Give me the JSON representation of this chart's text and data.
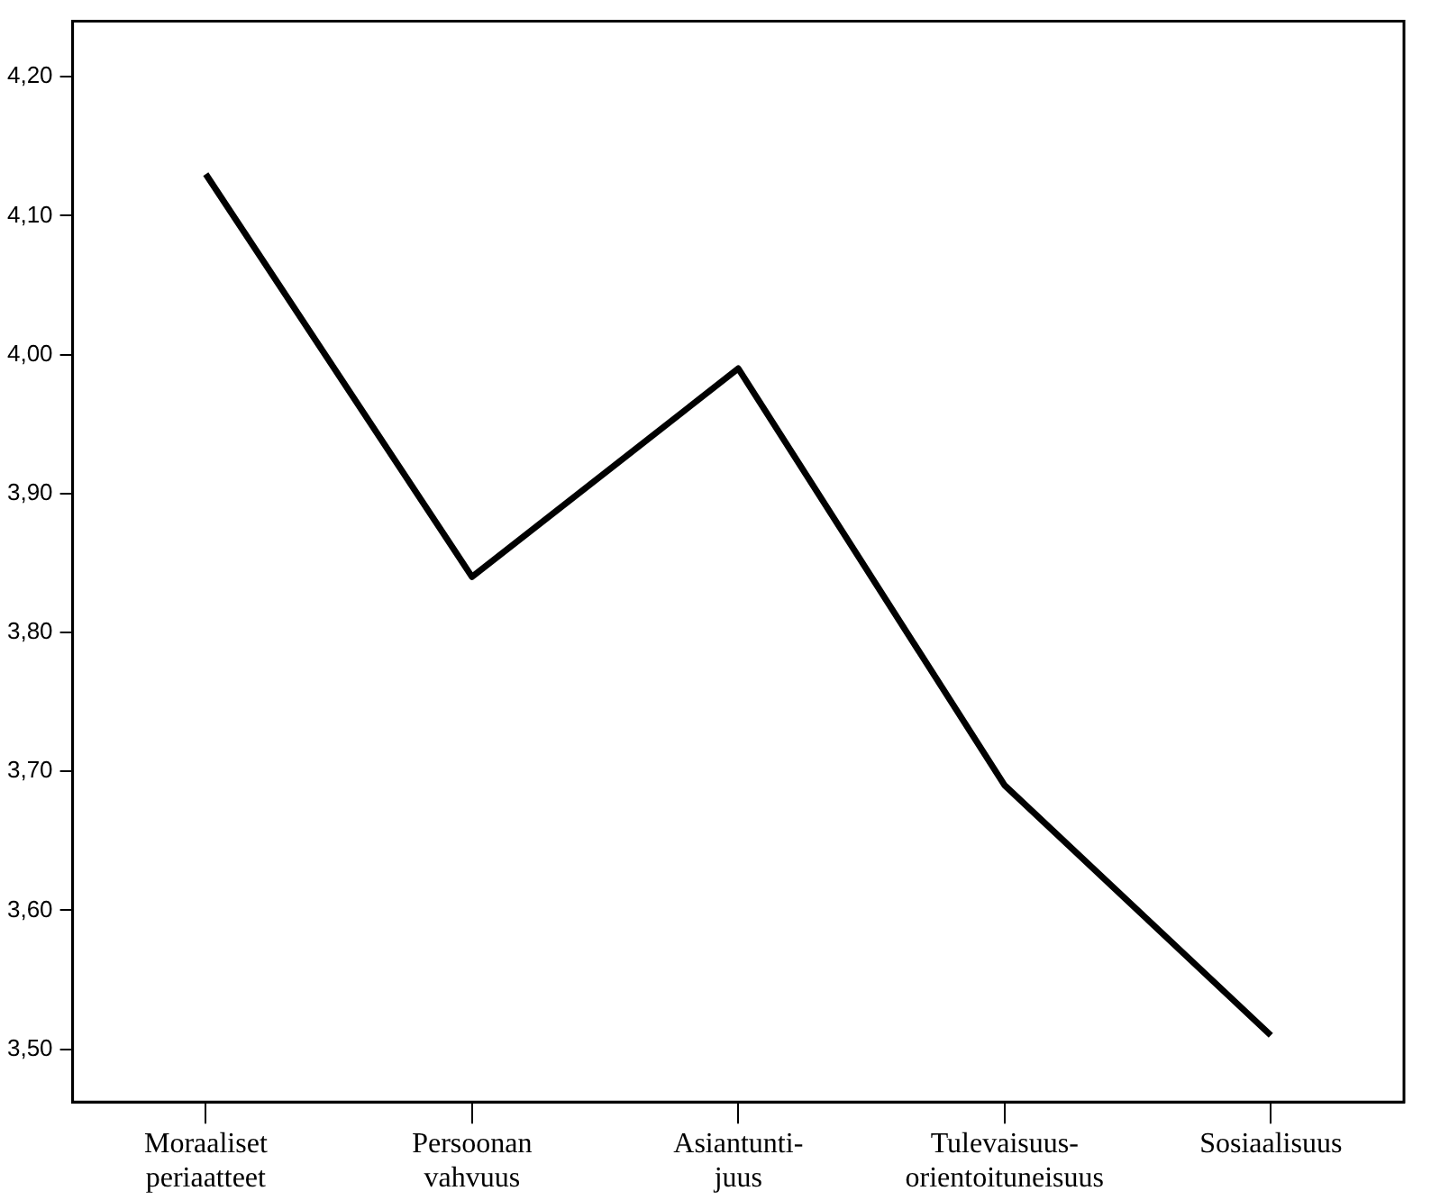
{
  "chart_data": {
    "type": "line",
    "categories": [
      "Moraaliset\nperiaatteet",
      "Persoonan\nvahvuus",
      "Asiantunti-\njuus",
      "Tulevaisuus-\norientoituneisuus",
      "Sosiaalisuus"
    ],
    "series": [
      {
        "color": "#000000",
        "values": [
          4.13,
          3.84,
          3.99,
          3.69,
          3.51
        ]
      }
    ],
    "ylim": [
      3.462,
      4.24
    ],
    "yticks": [
      {
        "value": 3.5,
        "label": "3,50"
      },
      {
        "value": 3.6,
        "label": "3,60"
      },
      {
        "value": 3.7,
        "label": "3,70"
      },
      {
        "value": 3.8,
        "label": "3,80"
      },
      {
        "value": 3.9,
        "label": "3,90"
      },
      {
        "value": 4.0,
        "label": "4,00"
      },
      {
        "value": 4.1,
        "label": "4,10"
      },
      {
        "value": 4.2,
        "label": "4,20"
      }
    ],
    "grid": false,
    "legend": false,
    "marker": "none",
    "line_style": "solid"
  }
}
